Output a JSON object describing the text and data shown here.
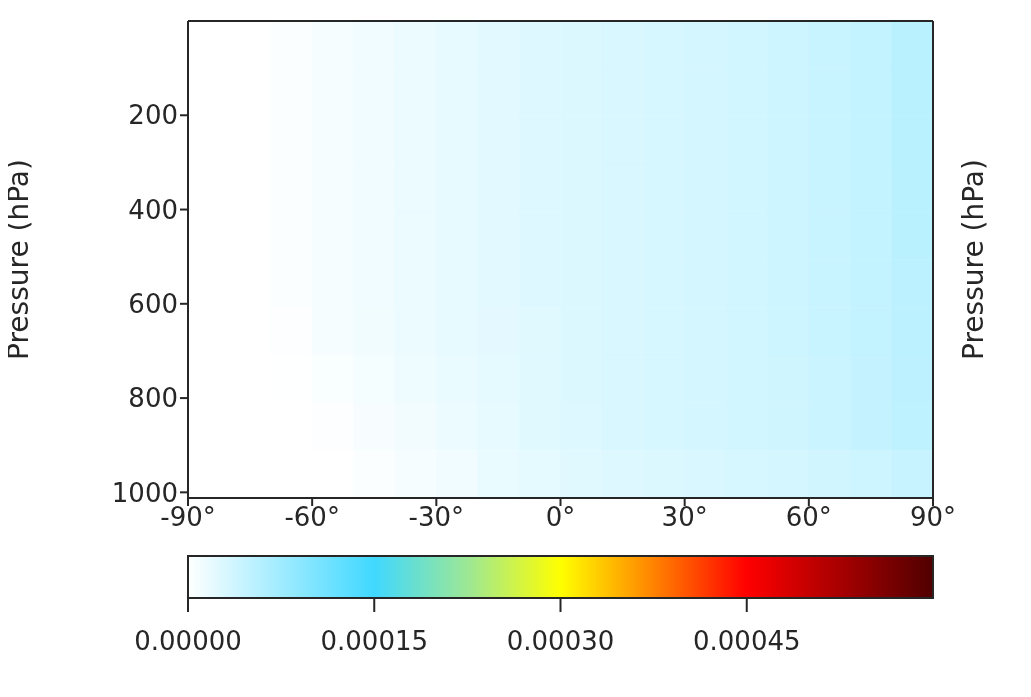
{
  "chart_data": {
    "type": "heatmap",
    "ylabel": "Pressure (hPa)",
    "y2label": "Pressure (hPa)",
    "x": [
      -85,
      -75,
      -65,
      -55,
      -45,
      -35,
      -25,
      -15,
      -5,
      5,
      15,
      25,
      35,
      45,
      55,
      65,
      75,
      85
    ],
    "y": [
      50.6,
      151.8,
      253,
      354.2,
      455.4,
      556.6,
      657.8,
      759,
      860.2,
      961.4
    ],
    "xlim": [
      -90,
      90
    ],
    "xticks": [
      {
        "value": -90,
        "label": "-90°"
      },
      {
        "value": -60,
        "label": "-60°"
      },
      {
        "value": -30,
        "label": "-30°"
      },
      {
        "value": 0,
        "label": "0°"
      },
      {
        "value": 30,
        "label": "30°"
      },
      {
        "value": 60,
        "label": "60°"
      },
      {
        "value": 90,
        "label": "90°"
      }
    ],
    "ylim": [
      1012,
      0
    ],
    "yticks": [
      200,
      400,
      600,
      800,
      1000
    ],
    "clim": [
      0,
      0.0006
    ],
    "cticks": [
      {
        "value": 0,
        "label": "0.00000"
      },
      {
        "value": 0.00015,
        "label": "0.00015"
      },
      {
        "value": 0.0003,
        "label": "0.00030"
      },
      {
        "value": 0.00045,
        "label": "0.00045"
      }
    ],
    "cells": [
      [
        0,
        0,
        3e-06,
        8e-06,
        1.2e-05,
        1.6e-05,
        2e-05,
        2.3e-05,
        2.6e-05,
        2.8e-05,
        3e-05,
        3.2e-05,
        3.4e-05,
        3.6e-05,
        3.9e-05,
        4.3e-05,
        4.8e-05,
        5.5e-05
      ],
      [
        0,
        0,
        3e-06,
        8e-06,
        1.2e-05,
        1.6e-05,
        2e-05,
        2.3e-05,
        2.6e-05,
        2.8e-05,
        3e-05,
        3.2e-05,
        3.4e-05,
        3.6e-05,
        3.9e-05,
        4.3e-05,
        4.8e-05,
        5.5e-05
      ],
      [
        0,
        0,
        3e-06,
        8e-06,
        1.2e-05,
        1.6e-05,
        2e-05,
        2.3e-05,
        2.6e-05,
        2.8e-05,
        3e-05,
        3.2e-05,
        3.4e-05,
        3.6e-05,
        3.9e-05,
        4.3e-05,
        4.8e-05,
        5.5e-05
      ],
      [
        0,
        0,
        3e-06,
        8e-06,
        1.2e-05,
        1.6e-05,
        2e-05,
        2.3e-05,
        2.6e-05,
        2.8e-05,
        3e-05,
        3.2e-05,
        3.4e-05,
        3.6e-05,
        3.9e-05,
        4.3e-05,
        4.8e-05,
        5.4e-05
      ],
      [
        0,
        0,
        3e-06,
        8e-06,
        1.2e-05,
        1.6e-05,
        2e-05,
        2.3e-05,
        2.6e-05,
        2.8e-05,
        3e-05,
        3.2e-05,
        3.4e-05,
        3.6e-05,
        3.9e-05,
        4.3e-05,
        4.8e-05,
        5.4e-05
      ],
      [
        0,
        0,
        3e-06,
        8e-06,
        1.2e-05,
        1.6e-05,
        2e-05,
        2.3e-05,
        2.6e-05,
        2.8e-05,
        3e-05,
        3.2e-05,
        3.4e-05,
        3.6e-05,
        3.9e-05,
        4.3e-05,
        4.7e-05,
        5.3e-05
      ],
      [
        0,
        0,
        2e-06,
        7e-06,
        1.1e-05,
        1.5e-05,
        1.9e-05,
        2.2e-05,
        2.5e-05,
        2.8e-05,
        3e-05,
        3.2e-05,
        3.4e-05,
        3.6e-05,
        3.9e-05,
        4.3e-05,
        4.7e-05,
        5.3e-05
      ],
      [
        0,
        0,
        1e-06,
        5e-06,
        9e-06,
        1.3e-05,
        1.7e-05,
        2.1e-05,
        2.5e-05,
        2.8e-05,
        3e-05,
        3.2e-05,
        3.4e-05,
        3.6e-05,
        3.8e-05,
        4.2e-05,
        4.6e-05,
        5.2e-05
      ],
      [
        0,
        0,
        0,
        2e-06,
        6e-06,
        1e-05,
        1.5e-05,
        2e-05,
        2.4e-05,
        2.7e-05,
        3e-05,
        3.2e-05,
        3.4e-05,
        3.6e-05,
        3.8e-05,
        4.2e-05,
        4.6e-05,
        5.1e-05
      ],
      [
        0,
        0,
        0,
        0,
        3e-06,
        7e-06,
        1.2e-05,
        1.7e-05,
        2.1e-05,
        2.4e-05,
        2.6e-05,
        2.8e-05,
        3e-05,
        3.2e-05,
        3.4e-05,
        3.7e-05,
        4e-05,
        4.5e-05
      ]
    ]
  }
}
